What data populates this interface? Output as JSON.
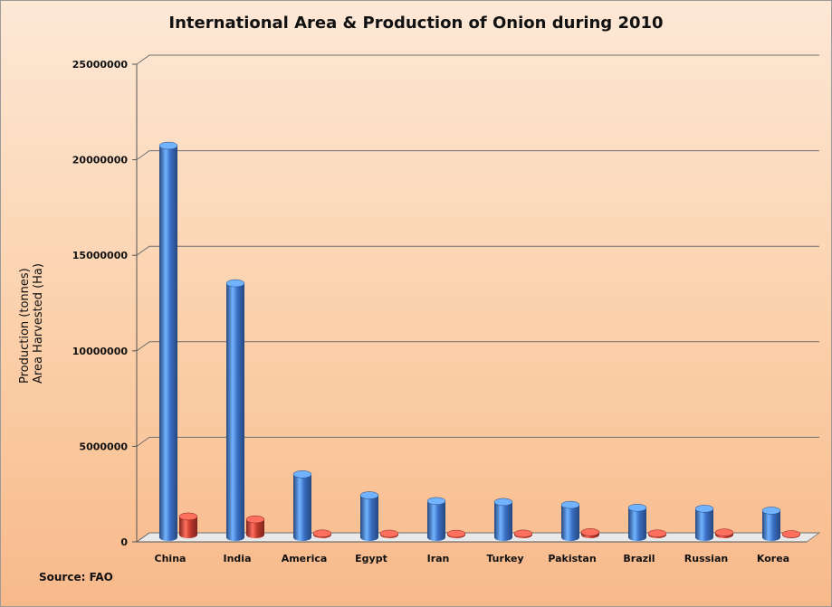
{
  "chart_data": {
    "type": "bar",
    "title": "International Area & Production of Onion during 2010",
    "ylabel_lines": [
      "Production (tonnes)",
      "Area Harvested (Ha)"
    ],
    "ylim": [
      0,
      25000000
    ],
    "yticks": [
      "0",
      "5000000",
      "10000000",
      "15000000",
      "20000000",
      "25000000"
    ],
    "categories": [
      "China",
      "India",
      "America",
      "Egypt",
      "Iran",
      "Turkey",
      "Pakistan",
      "Brazil",
      "Russian",
      "Korea"
    ],
    "series": [
      {
        "color": "#3b6fc4",
        "values": [
          20500000,
          13300000,
          3300000,
          2200000,
          1900000,
          1850000,
          1700000,
          1550000,
          1500000,
          1400000
        ]
      },
      {
        "color": "#c0392b",
        "values": [
          950000,
          800000,
          60000,
          50000,
          45000,
          55000,
          130000,
          60000,
          110000,
          25000
        ]
      }
    ],
    "grid": true,
    "source": "Source: FAO"
  }
}
